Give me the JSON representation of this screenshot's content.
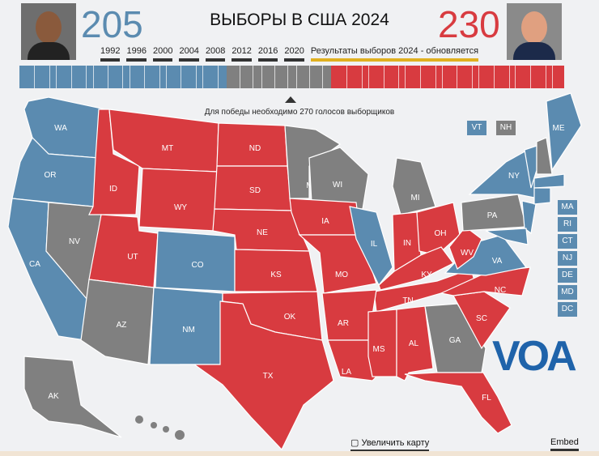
{
  "header": {
    "title": "ВЫБОРЫ В США 2024",
    "dem_votes": "205",
    "rep_votes": "230",
    "years": [
      "1992",
      "1996",
      "2000",
      "2004",
      "2008",
      "2012",
      "2016",
      "2020"
    ],
    "current": "Результаты выборов 2024 - обновляется",
    "win_note": "Для победы необходимо 270 голосов выборщиков"
  },
  "colors": {
    "dem": "#5b8bb0",
    "rep": "#d83b40",
    "undecided": "#808080"
  },
  "bar": {
    "dem": 205,
    "undecided": 103,
    "rep": 230
  },
  "states": {
    "WA": "WA",
    "OR": "OR",
    "CA": "CA",
    "NV": "NV",
    "ID": "ID",
    "MT": "MT",
    "WY": "WY",
    "UT": "UT",
    "AZ": "AZ",
    "CO": "CO",
    "NM": "NM",
    "ND": "ND",
    "SD": "SD",
    "NE": "NE",
    "KS": "KS",
    "OK": "OK",
    "TX": "TX",
    "MN": "MN",
    "WI": "WI",
    "IA": "IA",
    "MO": "MO",
    "IL": "IL",
    "MI": "MI",
    "IN": "IN",
    "OH": "OH",
    "KY": "KY",
    "TN": "TN",
    "AR": "AR",
    "LA": "LA",
    "MS": "MS",
    "AL": "AL",
    "GA": "GA",
    "FL": "FL",
    "SC": "SC",
    "NC": "NC",
    "VA": "VA",
    "WV": "WV",
    "PA": "PA",
    "NY": "NY",
    "ME": "ME",
    "AK": "AK"
  },
  "small_states": {
    "VT": "VT",
    "NH": "NH",
    "MA": "MA",
    "RI": "RI",
    "CT": "CT",
    "NJ": "NJ",
    "DE": "DE",
    "MD": "MD",
    "DC": "DC"
  },
  "logo": "VOA",
  "footer": {
    "enlarge": "▢ Увеличить карту",
    "embed": "Embed"
  }
}
